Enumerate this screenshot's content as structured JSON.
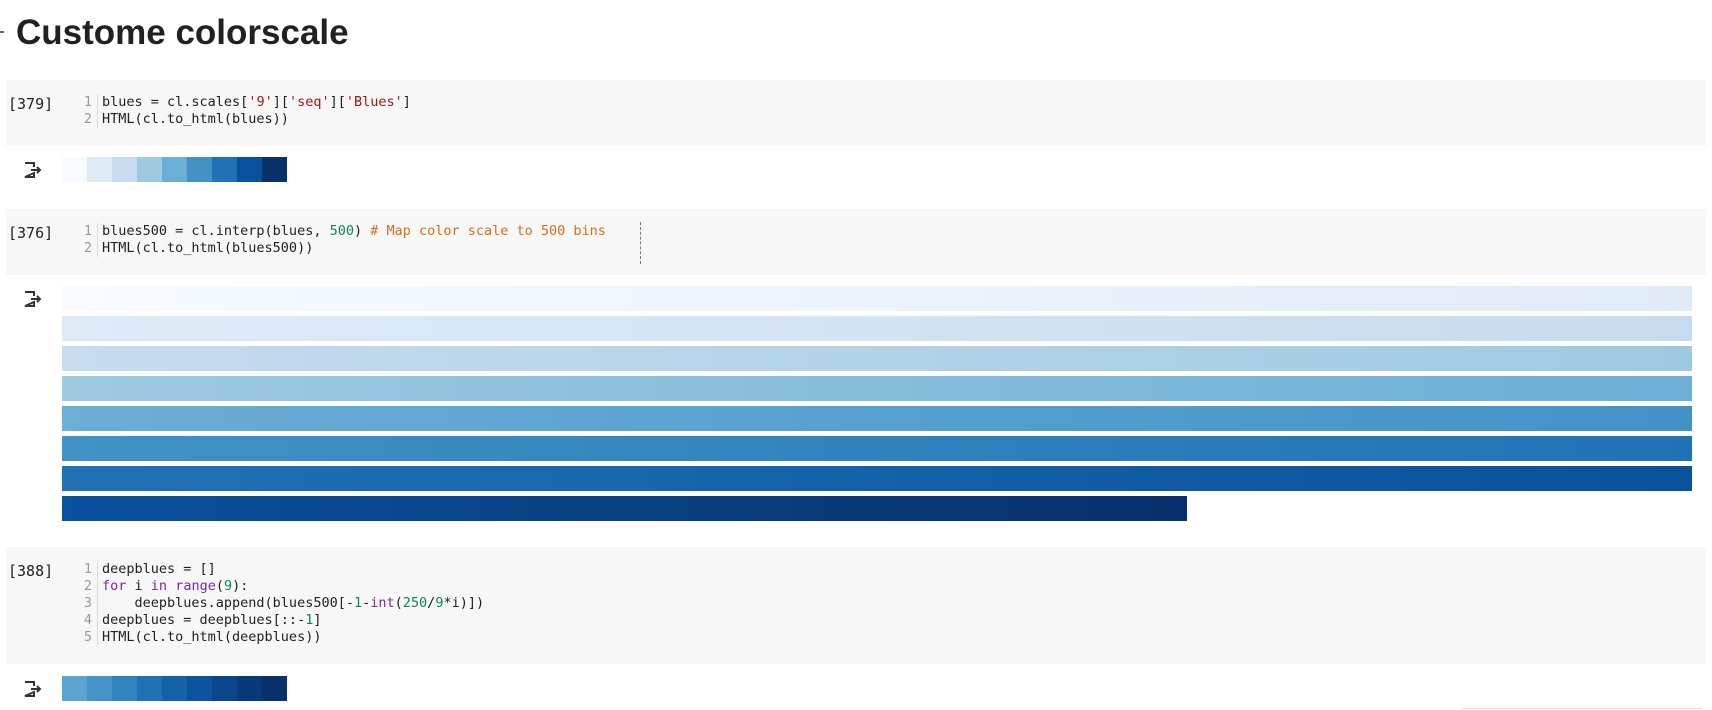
{
  "notebook": {
    "heading": "Customе colorscale"
  },
  "cells": [
    {
      "counter": "[379]",
      "lines": [
        {
          "n": "1",
          "tokens": [
            [
              "plain",
              "blues = cl.scales["
            ],
            [
              "str",
              "'9'"
            ],
            [
              "plain",
              "]["
            ],
            [
              "str",
              "'seq'"
            ],
            [
              "plain",
              "]["
            ],
            [
              "str",
              "'Blues'"
            ],
            [
              "plain",
              "]"
            ]
          ]
        },
        {
          "n": "2",
          "tokens": [
            [
              "plain",
              "HTML(cl.to_html(blues))"
            ]
          ]
        }
      ],
      "output": {
        "type": "swatches",
        "colors": [
          "#f7fbff",
          "#deebf7",
          "#c6dbef",
          "#9ecae1",
          "#6baed6",
          "#4292c6",
          "#2171b5",
          "#08519c",
          "#08306b"
        ]
      }
    },
    {
      "counter": "[376]",
      "lines": [
        {
          "n": "1",
          "tokens": [
            [
              "plain",
              "blues500 = cl.interp(blues, "
            ],
            [
              "num",
              "500"
            ],
            [
              "plain",
              ") "
            ],
            [
              "com",
              "# Map color scale to 500 bins"
            ]
          ]
        },
        {
          "n": "2",
          "tokens": [
            [
              "plain",
              "HTML(cl.to_html(blues500))"
            ]
          ]
        }
      ],
      "output": {
        "type": "gradient-rows",
        "rows": [
          {
            "from": "#f7fbff",
            "to": "#dfebf7",
            "fraction": 1.0
          },
          {
            "from": "#deebf7",
            "to": "#c6dbef",
            "fraction": 1.0
          },
          {
            "from": "#c6dbef",
            "to": "#9ecae1",
            "fraction": 1.0
          },
          {
            "from": "#9ecae1",
            "to": "#6baed6",
            "fraction": 1.0
          },
          {
            "from": "#6baed6",
            "to": "#4292c6",
            "fraction": 1.0
          },
          {
            "from": "#4292c6",
            "to": "#2171b5",
            "fraction": 1.0
          },
          {
            "from": "#2171b5",
            "to": "#08519c",
            "fraction": 1.0
          },
          {
            "from": "#08519c",
            "to": "#08306b",
            "fraction": 0.69
          }
        ]
      }
    },
    {
      "counter": "[388]",
      "lines": [
        {
          "n": "1",
          "tokens": [
            [
              "plain",
              "deepblues = []"
            ]
          ]
        },
        {
          "n": "2",
          "tokens": [
            [
              "kw",
              "for"
            ],
            [
              "plain",
              " i "
            ],
            [
              "kw",
              "in"
            ],
            [
              "plain",
              " "
            ],
            [
              "kw",
              "range"
            ],
            [
              "plain",
              "("
            ],
            [
              "num",
              "9"
            ],
            [
              "plain",
              "):"
            ]
          ]
        },
        {
          "n": "3",
          "tokens": [
            [
              "plain",
              "    deepblues.append(blues500[-"
            ],
            [
              "num",
              "1"
            ],
            [
              "plain",
              "-"
            ],
            [
              "kw",
              "int"
            ],
            [
              "plain",
              "("
            ],
            [
              "num",
              "250"
            ],
            [
              "plain",
              "/"
            ],
            [
              "num",
              "9"
            ],
            [
              "plain",
              "*i)])"
            ]
          ]
        },
        {
          "n": "4",
          "tokens": [
            [
              "plain",
              "deepblues = deepblues[::-"
            ],
            [
              "num",
              "1"
            ],
            [
              "plain",
              "]"
            ]
          ]
        },
        {
          "n": "5",
          "tokens": [
            [
              "plain",
              "HTML(cl.to_html(deepblues))"
            ]
          ]
        }
      ],
      "output": {
        "type": "swatches",
        "colors": [
          "#5ba3d0",
          "#4593c7",
          "#3383be",
          "#2171b5",
          "#1562a9",
          "#0b539e",
          "#08458a",
          "#083a78",
          "#08306b"
        ]
      }
    }
  ]
}
